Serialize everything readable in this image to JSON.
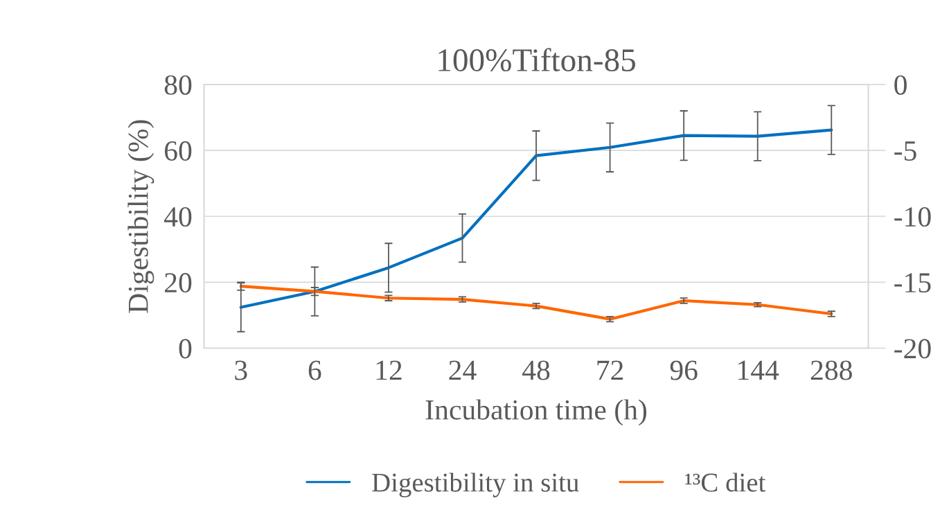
{
  "chart_data": {
    "type": "line",
    "title": "100%Tifton-85",
    "xlabel": "Incubation time (h)",
    "ylabel": "Digestibility (%)",
    "categories": [
      "3",
      "6",
      "12",
      "24",
      "48",
      "72",
      "96",
      "144",
      "288"
    ],
    "series": [
      {
        "name": "Digestibility in situ",
        "color": "#0070c0",
        "values": [
          12.4,
          17.2,
          24.4,
          33.4,
          58.4,
          60.9,
          64.5,
          64.3,
          66.2
        ],
        "errors": [
          7.4,
          7.4,
          7.4,
          7.3,
          7.5,
          7.4,
          7.5,
          7.4,
          7.4
        ]
      },
      {
        "name": "¹³C diet",
        "color": "#ff6600",
        "axis": "y2",
        "values": [
          -15.3,
          -15.7,
          -16.2,
          -16.3,
          -16.8,
          -17.8,
          -16.4,
          -16.7,
          -17.4
        ],
        "errors": [
          0.3,
          0.3,
          0.2,
          0.2,
          0.2,
          0.2,
          0.2,
          0.15,
          0.2
        ]
      }
    ],
    "ylim": [
      0,
      80
    ],
    "yticks": [
      0,
      20,
      40,
      60,
      80
    ],
    "y2lim": [
      -20,
      0
    ],
    "y2ticks": [
      -20,
      -15,
      -10,
      -5,
      0
    ],
    "grid": "y",
    "legend": "bottom",
    "marker": "none",
    "line_style": "solid"
  }
}
